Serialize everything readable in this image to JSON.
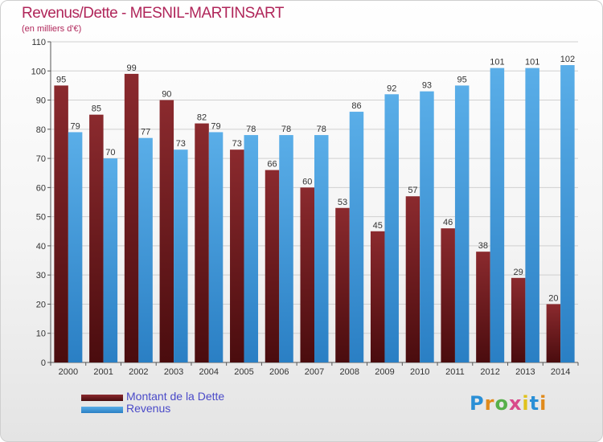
{
  "title": "Revenus/Dette - MESNIL-MARTINSART",
  "subtitle": "(en milliers d'€)",
  "legend": {
    "dette_label": "Montant de la Dette",
    "revenus_label": "Revenus"
  },
  "logo": [
    "P",
    "r",
    "o",
    "x",
    "i",
    "t",
    "i"
  ],
  "colors": {
    "dette_top": "#8b2a2e",
    "dette_bottom": "#4a0c0e",
    "revenus_top": "#5aaee8",
    "revenus_bottom": "#2a7fc4",
    "title": "#b0265a",
    "legend_text": "#4a4ac8",
    "grid": "#d0d0d0"
  },
  "chart_data": {
    "type": "bar",
    "ylim": [
      0,
      110
    ],
    "yticks": [
      0,
      10,
      20,
      30,
      40,
      50,
      60,
      70,
      80,
      90,
      100,
      110
    ],
    "grid": true,
    "legend_position": "bottom-left",
    "categories": [
      "2000",
      "2001",
      "2002",
      "2003",
      "2004",
      "2005",
      "2006",
      "2007",
      "2008",
      "2009",
      "2010",
      "2011",
      "2012",
      "2013",
      "2014"
    ],
    "series": [
      {
        "name": "Montant de la Dette",
        "values": [
          95,
          85,
          99,
          90,
          82,
          73,
          66,
          60,
          53,
          45,
          57,
          46,
          38,
          29,
          20
        ]
      },
      {
        "name": "Revenus",
        "values": [
          79,
          70,
          77,
          73,
          79,
          78,
          78,
          78,
          86,
          92,
          93,
          95,
          101,
          101,
          102
        ]
      }
    ]
  }
}
